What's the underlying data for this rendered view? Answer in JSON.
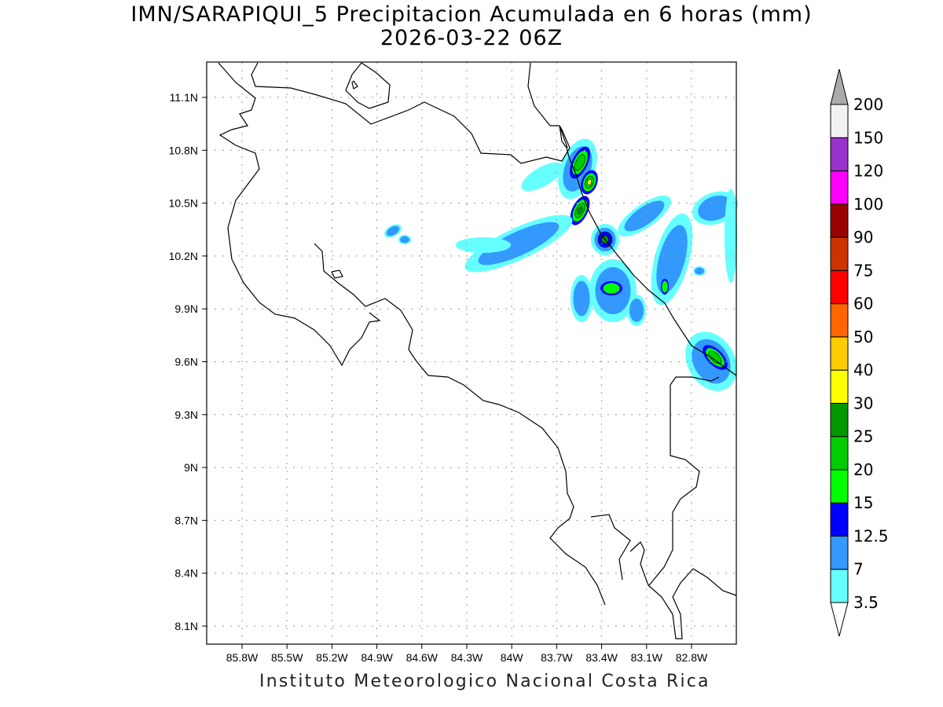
{
  "title": "IMN/SARAPIQUI_5 Precipitacion Acumulada en 6 horas (mm)",
  "subtitle": "2026-03-22 06Z",
  "footer": "Instituto Meteorologico Nacional Costa Rica",
  "map": {
    "lon_ticks": [
      "85.8W",
      "85.5W",
      "85.2W",
      "84.9W",
      "84.6W",
      "84.3W",
      "84W",
      "83.7W",
      "83.4W",
      "83.1W",
      "82.8W"
    ],
    "lat_ticks": [
      "11.1N",
      "10.8N",
      "10.5N",
      "10.2N",
      "9.9N",
      "9.6N",
      "9.3N",
      "9N",
      "8.7N",
      "8.4N",
      "8.1N"
    ]
  },
  "colorbar": {
    "labels": [
      "3.5",
      "7",
      "12.5",
      "15",
      "20",
      "25",
      "30",
      "40",
      "50",
      "60",
      "75",
      "90",
      "100",
      "120",
      "150",
      "200"
    ],
    "colors": [
      "#66ffff",
      "#3399ff",
      "#0000ff",
      "#00ff00",
      "#00cc00",
      "#009900",
      "#ffff00",
      "#ffcc00",
      "#ff6600",
      "#ff0000",
      "#cc3300",
      "#990000",
      "#ff00ff",
      "#9933cc",
      "#f2f2f2"
    ],
    "over_color": "#aaaaaa"
  }
}
